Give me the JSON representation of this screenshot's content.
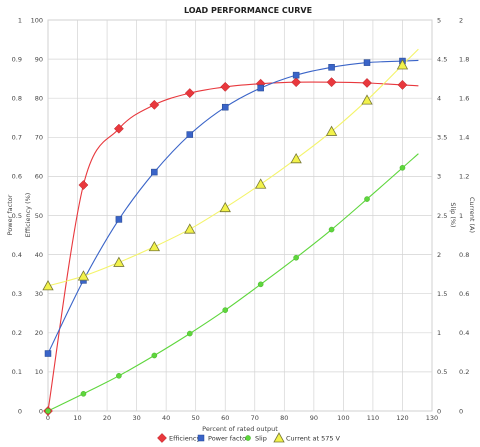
{
  "chart_data": {
    "type": "scatter",
    "title": "LOAD PERFORMANCE CURVE",
    "xlabel": "Percent of rated output",
    "xlim": [
      0,
      130
    ],
    "x_ticks": [
      0,
      10,
      20,
      30,
      40,
      50,
      60,
      70,
      80,
      90,
      100,
      110,
      120,
      130
    ],
    "grid": true,
    "legend_position": "bottom",
    "axes": {
      "left_outer": {
        "label": "Power factor",
        "range": [
          0,
          1
        ],
        "ticks": [
          "0",
          "0.1",
          "0.2",
          "0.3",
          "0.4",
          "0.5",
          "0.6",
          "0.7",
          "0.8",
          "0.9",
          "1"
        ]
      },
      "left_inner": {
        "label": "Efficiency (%)",
        "range": [
          0,
          100
        ],
        "ticks": [
          "0",
          "10",
          "20",
          "30",
          "40",
          "50",
          "60",
          "70",
          "80",
          "90",
          "100"
        ]
      },
      "right_inner": {
        "label": "Slip (%)",
        "range": [
          0,
          5
        ],
        "ticks": [
          "0",
          "0.5",
          "1",
          "1.5",
          "2",
          "2.5",
          "3",
          "3.5",
          "4",
          "4.5",
          "5"
        ]
      },
      "right_outer": {
        "label": "Current (A)",
        "range": [
          0,
          2
        ],
        "ticks": [
          "0",
          "0.2",
          "0.4",
          "0.6",
          "0.8",
          "1",
          "1.2",
          "1.4",
          "1.6",
          "1.8",
          "2"
        ]
      }
    },
    "series": [
      {
        "name": "Efficiency",
        "axis": "left_inner",
        "color": "#e8383d",
        "marker": "diamond",
        "x": [
          0,
          12,
          24,
          36,
          48,
          60,
          72,
          84,
          96,
          108,
          120
        ],
        "y": [
          0,
          57.8,
          72.2,
          78.3,
          81.3,
          82.9,
          83.7,
          84.1,
          84.1,
          83.9,
          83.4
        ]
      },
      {
        "name": "Power factor",
        "axis": "left_outer",
        "color": "#3a64c8",
        "marker": "square",
        "x": [
          0,
          12,
          24,
          36,
          48,
          60,
          72,
          84,
          96,
          108,
          120
        ],
        "y": [
          0.147,
          0.334,
          0.49,
          0.611,
          0.707,
          0.777,
          0.826,
          0.859,
          0.879,
          0.891,
          0.895
        ]
      },
      {
        "name": "Slip",
        "axis": "right_inner",
        "color": "#5ed63c",
        "marker": "circle",
        "x": [
          0,
          12,
          24,
          36,
          48,
          60,
          72,
          84,
          96,
          108,
          120
        ],
        "y": [
          0,
          0.22,
          0.45,
          0.71,
          0.99,
          1.29,
          1.62,
          1.96,
          2.32,
          2.71,
          3.11
        ]
      },
      {
        "name": "Current at 575 V",
        "axis": "right_outer",
        "color": "#f2f24a",
        "marker": "triangle",
        "x": [
          0,
          12,
          24,
          36,
          48,
          60,
          72,
          84,
          96,
          108,
          120
        ],
        "y": [
          0.64,
          0.69,
          0.76,
          0.84,
          0.93,
          1.04,
          1.16,
          1.29,
          1.43,
          1.59,
          1.77
        ]
      }
    ]
  }
}
